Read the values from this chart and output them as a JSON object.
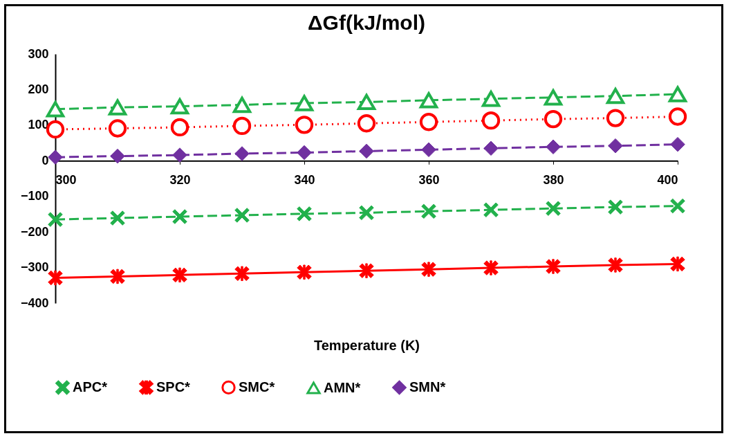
{
  "chart_data": {
    "type": "line",
    "title": "ΔGf(kJ/mol)",
    "xlabel": "Temperature (K)",
    "x": [
      300,
      310,
      320,
      330,
      340,
      350,
      360,
      370,
      380,
      390,
      400
    ],
    "xlim": [
      300,
      400
    ],
    "xticks": [
      300,
      320,
      340,
      360,
      380,
      400
    ],
    "ylim": [
      -400,
      300
    ],
    "yticks": [
      -400,
      -300,
      -200,
      -100,
      0,
      100,
      200,
      300
    ],
    "grid": false,
    "legend": "bottom",
    "series": [
      {
        "name": "APC*",
        "color": "#22b14c",
        "marker": "cross",
        "line_style": "dashed",
        "values": [
          -165,
          -161,
          -157,
          -153,
          -149,
          -146,
          -142,
          -138,
          -134,
          -130,
          -127
        ]
      },
      {
        "name": "SPC*",
        "color": "#ff0000",
        "marker": "star",
        "line_style": "solid",
        "values": [
          -329,
          -325,
          -321,
          -317,
          -313,
          -309,
          -305,
          -301,
          -297,
          -293,
          -290
        ]
      },
      {
        "name": "SMC*",
        "color": "#ff0000",
        "marker": "circle",
        "line_style": "dotted",
        "values": [
          88,
          91,
          94,
          98,
          101,
          105,
          109,
          113,
          117,
          120,
          124
        ]
      },
      {
        "name": "AMN*",
        "color": "#22b14c",
        "marker": "triangle",
        "line_style": "dashed",
        "values": [
          145,
          150,
          153,
          157,
          162,
          165,
          170,
          174,
          178,
          182,
          187
        ]
      },
      {
        "name": "SMN*",
        "color": "#7030a0",
        "marker": "diamond",
        "line_style": "dashed",
        "values": [
          10,
          13,
          16,
          20,
          23,
          27,
          31,
          35,
          39,
          42,
          46
        ]
      }
    ]
  }
}
